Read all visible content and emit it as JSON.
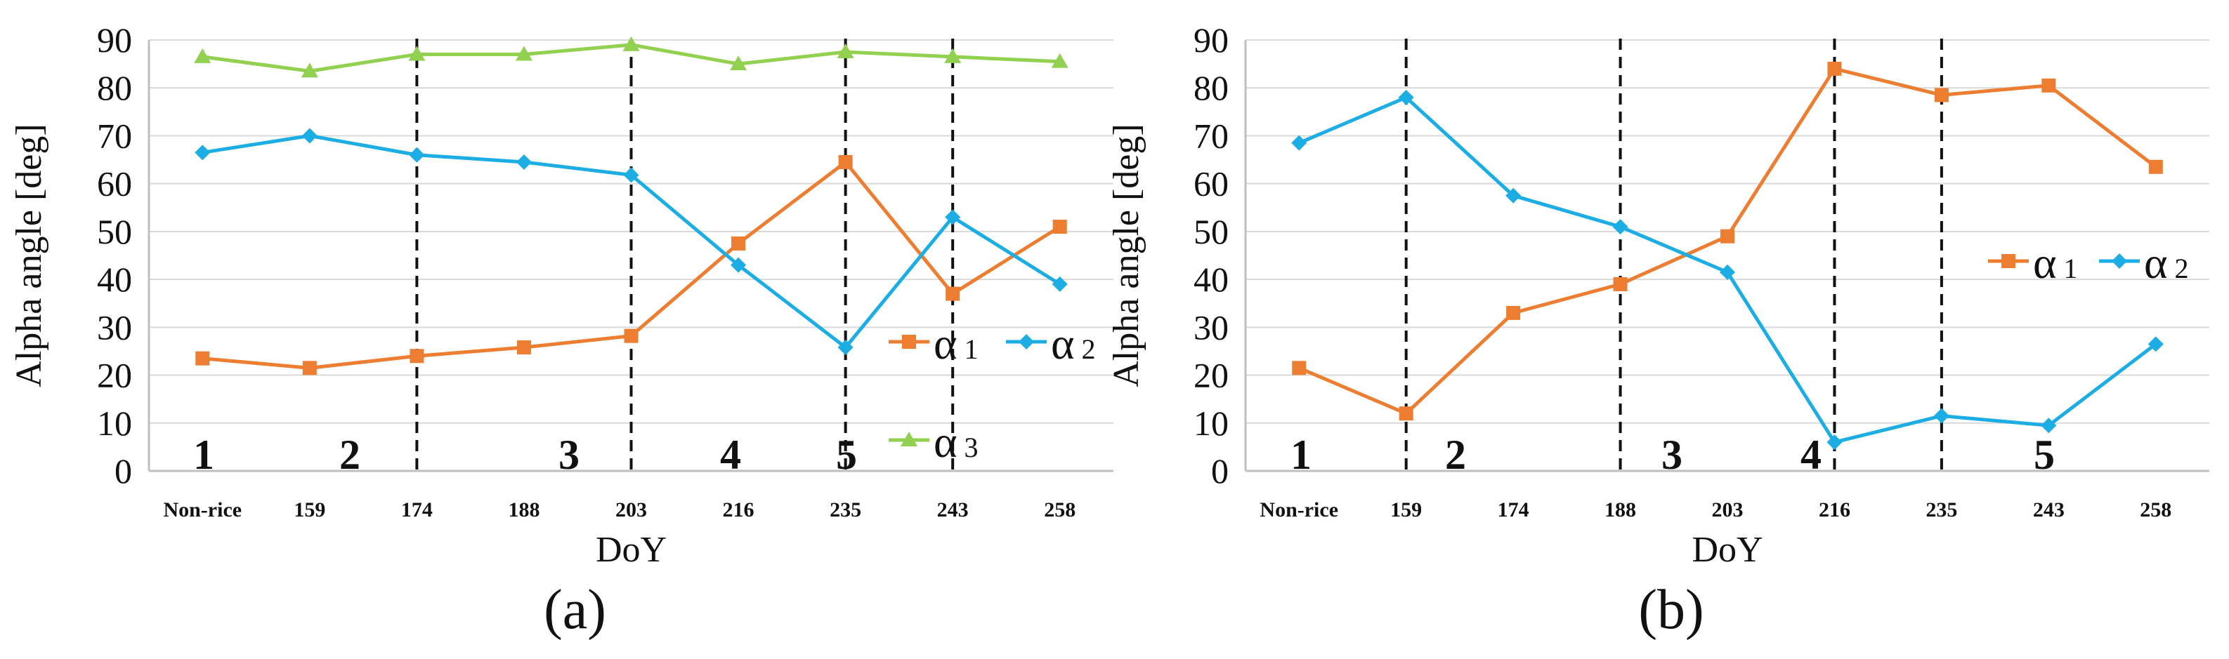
{
  "chart_data": [
    {
      "type": "line",
      "panel_label": "(a)",
      "xlabel": "DoY",
      "ylabel": "Alpha angle [deg]",
      "ylim": [
        0,
        90
      ],
      "yticks": [
        0,
        10,
        20,
        30,
        40,
        50,
        60,
        70,
        80,
        90
      ],
      "categories": [
        "Non-rice",
        "159",
        "174",
        "188",
        "203",
        "216",
        "235",
        "243",
        "258"
      ],
      "grid": true,
      "region_labels": [
        "1",
        "2",
        "3",
        "4",
        "5"
      ],
      "series": [
        {
          "name": "α1",
          "symbol": "α",
          "subscript": "1",
          "color": "#ED7D31",
          "marker": "square",
          "values": [
            23.5,
            21.5,
            24,
            25.8,
            28.2,
            47.5,
            64.5,
            37,
            51
          ]
        },
        {
          "name": "α2",
          "symbol": "α",
          "subscript": "2",
          "color": "#1CADE4",
          "marker": "diamond",
          "values": [
            66.5,
            70,
            66,
            64.5,
            61.8,
            43,
            25.8,
            53,
            39
          ]
        },
        {
          "name": "α3",
          "symbol": "α",
          "subscript": "3",
          "color": "#92D050",
          "marker": "triangle",
          "values": [
            86.5,
            83.5,
            87,
            87,
            89,
            85,
            87.5,
            86.5,
            85.5
          ]
        }
      ],
      "legend": "bottom-right"
    },
    {
      "type": "line",
      "panel_label": "(b)",
      "xlabel": "DoY",
      "ylabel": "Alpha angle [deg]",
      "ylim": [
        0,
        90
      ],
      "yticks": [
        0,
        10,
        20,
        30,
        40,
        50,
        60,
        70,
        80,
        90
      ],
      "categories": [
        "Non-rice",
        "159",
        "174",
        "188",
        "203",
        "216",
        "235",
        "243",
        "258"
      ],
      "grid": true,
      "region_labels": [
        "1",
        "2",
        "3",
        "4",
        "5"
      ],
      "series": [
        {
          "name": "α1",
          "symbol": "α",
          "subscript": "1",
          "color": "#ED7D31",
          "marker": "square",
          "values": [
            21.5,
            12,
            33,
            39,
            49,
            84,
            78.5,
            80.5,
            63.5
          ]
        },
        {
          "name": "α2",
          "symbol": "α",
          "subscript": "2",
          "color": "#1CADE4",
          "marker": "diamond",
          "values": [
            68.5,
            78,
            57.5,
            51,
            41.5,
            6,
            11.5,
            9.5,
            26.5
          ]
        }
      ],
      "legend": "right"
    }
  ]
}
